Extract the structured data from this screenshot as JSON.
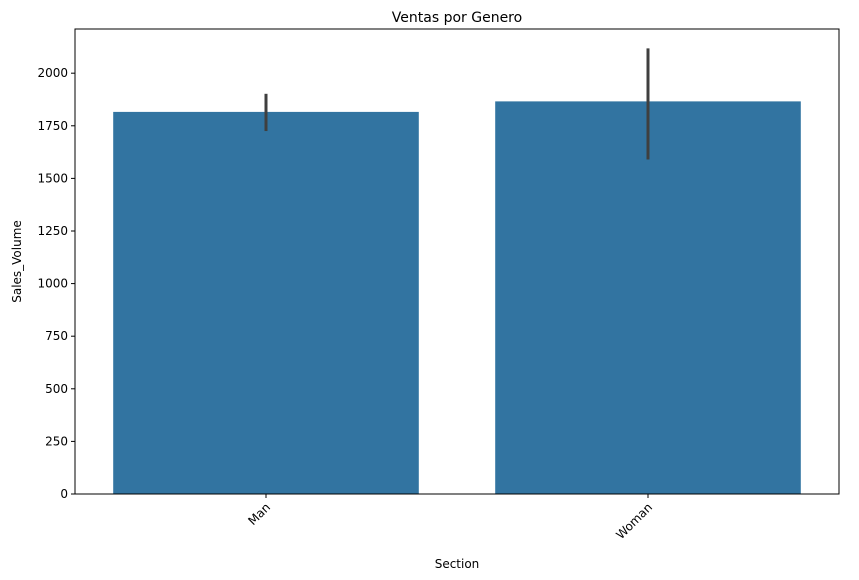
{
  "chart_data": {
    "type": "bar",
    "title": "Ventas por Genero",
    "xlabel": "Section",
    "ylabel": "Sales_Volume",
    "categories": [
      "Man",
      "Woman"
    ],
    "values": [
      1816,
      1866
    ],
    "error_bars": [
      {
        "low": 1725,
        "high": 1902
      },
      {
        "low": 1590,
        "high": 2118
      }
    ],
    "ylim": [
      0,
      2210
    ],
    "yticks": [
      0,
      250,
      500,
      750,
      1000,
      1250,
      1500,
      1750,
      2000
    ],
    "xtick_rotation_deg": 45,
    "grid": false,
    "bar_color": "#3274a1",
    "errorbar_color": "#3f3f3f"
  }
}
